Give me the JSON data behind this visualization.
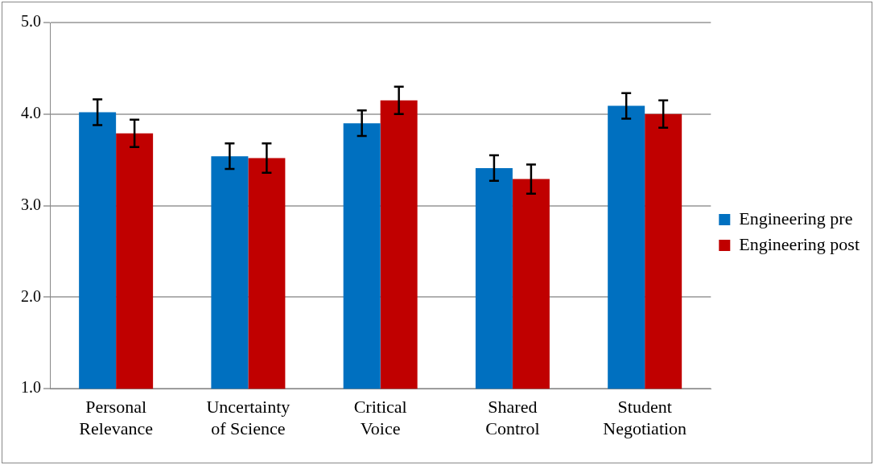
{
  "chart_data": {
    "type": "bar",
    "categories": [
      "Personal Relevance",
      "Uncertainty of Science",
      "Critical Voice",
      "Shared Control",
      "Student Negotiation"
    ],
    "series": [
      {
        "name": "Engineering pre",
        "color": "#0070c0",
        "values": [
          4.02,
          3.54,
          3.9,
          3.41,
          4.09
        ],
        "errors": [
          0.14,
          0.14,
          0.14,
          0.14,
          0.14
        ]
      },
      {
        "name": "Engineering post",
        "color": "#c00000",
        "values": [
          3.79,
          3.52,
          4.15,
          3.29,
          4.0
        ],
        "errors": [
          0.15,
          0.16,
          0.15,
          0.16,
          0.15
        ]
      }
    ],
    "ylim": [
      1,
      5
    ],
    "yticks": [
      {
        "value": 1,
        "label": "1.0"
      },
      {
        "value": 2,
        "label": "2.0"
      },
      {
        "value": 3,
        "label": "3.0"
      },
      {
        "value": 4,
        "label": "4.0"
      },
      {
        "value": 5,
        "label": "5.0"
      }
    ],
    "grid": "y",
    "legend": "right"
  }
}
